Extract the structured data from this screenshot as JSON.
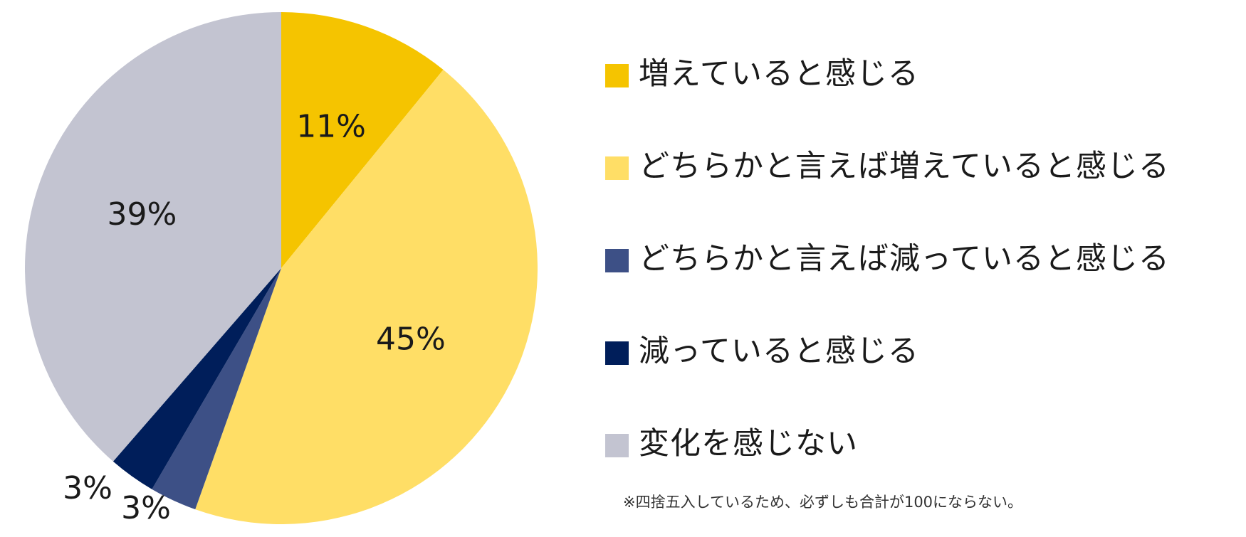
{
  "chart_data": {
    "type": "pie",
    "slices": [
      {
        "label": "増えていると感じる",
        "value": 11,
        "display": "11%",
        "color": "#F5C400"
      },
      {
        "label": "どちらかと言えば増えていると感じる",
        "value": 45,
        "display": "45%",
        "color": "#FFDE66"
      },
      {
        "label": "どちらかと言えば減っていると感じる",
        "value": 3,
        "display": "3%",
        "color": "#3D5086"
      },
      {
        "label": "減っていると感じる",
        "value": 3,
        "display": "3%",
        "color": "#001E5A"
      },
      {
        "label": "変化を感じない",
        "value": 39,
        "display": "39%",
        "color": "#C3C4D1"
      }
    ],
    "start_angle_deg": 0,
    "direction": "clockwise",
    "legend_position": "right",
    "footnote": "※四捨五入しているため、必ずしも合計が100にならない。"
  }
}
